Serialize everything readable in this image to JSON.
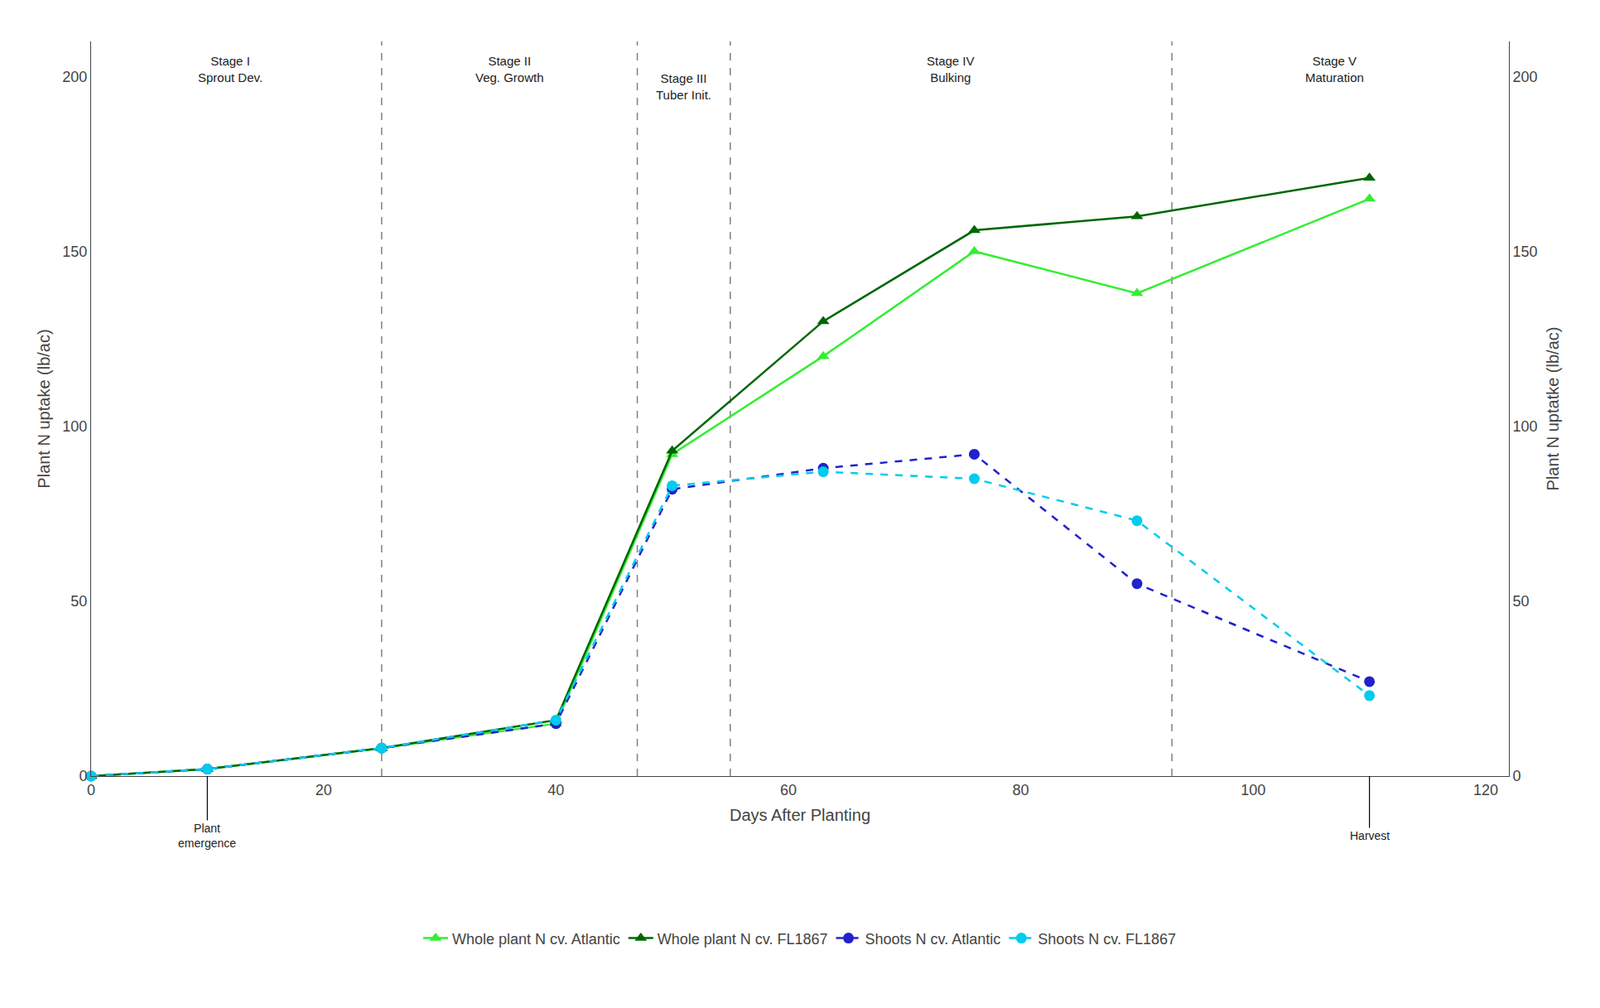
{
  "chart_data": {
    "type": "line",
    "x_label": "Days After Planting",
    "y_label": "Plant N uptake (lb/ac)",
    "y2_label": "Plant N uptatke (lb/ac)",
    "series": [
      {
        "name": "Whole plant N cv. Atlantic",
        "color": "#33ee33",
        "marker": "triangle-up",
        "line_style": "solid",
        "x": [
          0,
          10,
          25,
          40,
          50,
          63,
          76,
          90,
          110
        ],
        "values": [
          0,
          2,
          8,
          15,
          92,
          120,
          150,
          138,
          165
        ]
      },
      {
        "name": "Whole plant N cv. FL1867",
        "color": "#006600",
        "marker": "triangle-up",
        "line_style": "solid",
        "x": [
          0,
          10,
          25,
          40,
          50,
          63,
          76,
          90,
          110
        ],
        "values": [
          0,
          2,
          8,
          16,
          93,
          130,
          156,
          160,
          171
        ]
      },
      {
        "name": "Shoots N cv. Atlantic",
        "color": "#2222cc",
        "marker": "circle",
        "line_style": "dash",
        "x": [
          0,
          10,
          25,
          40,
          50,
          63,
          76,
          90,
          110
        ],
        "values": [
          0,
          2,
          8,
          15,
          82,
          88,
          92,
          55,
          27
        ]
      },
      {
        "name": "Shoots N cv. FL1867",
        "color": "#00ccee",
        "marker": "circle",
        "line_style": "dash",
        "x": [
          0,
          10,
          25,
          40,
          50,
          63,
          76,
          90,
          110
        ],
        "values": [
          0,
          2,
          8,
          16,
          83,
          87,
          85,
          73,
          23
        ]
      }
    ],
    "xlim": [
      0,
      122
    ],
    "xticks": [
      0,
      20,
      40,
      60,
      80,
      100,
      120
    ],
    "ylim": [
      0,
      210
    ],
    "yticks": [
      0,
      50,
      100,
      150,
      200
    ],
    "y2lim": [
      0,
      210
    ],
    "y2ticks": [
      0,
      50,
      100,
      150,
      200
    ],
    "grid": false,
    "legend": "bottom",
    "vlines": [
      25,
      47,
      55,
      93
    ],
    "annotations": [
      {
        "text": "Stage I\nSprout Dev.",
        "x": 12,
        "y": 207
      },
      {
        "text": "Stage II\nVeg. Growth",
        "x": 36,
        "y": 207
      },
      {
        "text": "Stage III\nTuber Init.",
        "x": 51,
        "y": 202
      },
      {
        "text": "Stage IV\nBulking",
        "x": 74,
        "y": 207
      },
      {
        "text": "Stage V\nMaturation",
        "x": 107,
        "y": 207
      },
      {
        "text": "Plant\nemergence",
        "x": 10
      },
      {
        "text": "Harvest",
        "x": 110
      }
    ]
  }
}
